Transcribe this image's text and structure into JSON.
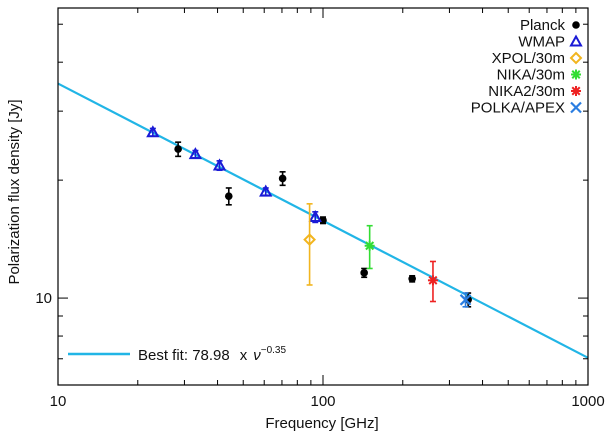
{
  "chart_data": {
    "type": "scatter",
    "xlabel": "Frequency [GHz]",
    "ylabel": "Polarization flux density [Jy]",
    "x_scale": "log",
    "y_scale": "log",
    "xlim": [
      10,
      1000
    ],
    "ylim": [
      6,
      55
    ],
    "x_ticks": [
      10,
      100,
      1000
    ],
    "x_tick_labels": [
      "10",
      "100",
      "1000"
    ],
    "y_ticks": [
      10
    ],
    "y_tick_labels": [
      "10"
    ],
    "legend_position": "top-right",
    "series": [
      {
        "name": "Planck",
        "color": "#000000",
        "marker": "filled-circle",
        "points": [
          {
            "x": 28.4,
            "y": 24.0,
            "err": 1.0
          },
          {
            "x": 44.1,
            "y": 18.2,
            "err": 0.9
          },
          {
            "x": 70.4,
            "y": 20.2,
            "err": 0.8
          },
          {
            "x": 100,
            "y": 15.8,
            "err": 0.3
          },
          {
            "x": 143,
            "y": 11.6,
            "err": 0.3
          },
          {
            "x": 217,
            "y": 11.2,
            "err": 0.2
          },
          {
            "x": 353,
            "y": 9.9,
            "err": 0.4
          }
        ]
      },
      {
        "name": "WMAP",
        "color": "#1a1ad6",
        "marker": "triangle",
        "points": [
          {
            "x": 22.8,
            "y": 26.5,
            "err": 0.6
          },
          {
            "x": 33.0,
            "y": 23.3,
            "err": 0.5
          },
          {
            "x": 40.7,
            "y": 21.8,
            "err": 0.6
          },
          {
            "x": 60.8,
            "y": 18.7,
            "err": 0.4
          },
          {
            "x": 93.5,
            "y": 16.1,
            "err": 0.5
          }
        ]
      },
      {
        "name": "XPOL/30m",
        "color": "#f2b51f",
        "marker": "open-diamond",
        "points": [
          {
            "x": 89,
            "y": 14.1,
            "err": 3.3
          }
        ]
      },
      {
        "name": "NIKA/30m",
        "color": "#33dd33",
        "marker": "cross",
        "points": [
          {
            "x": 150,
            "y": 13.6,
            "err": 1.7
          }
        ]
      },
      {
        "name": "NIKA2/30m",
        "color": "#ee2222",
        "marker": "cross",
        "points": [
          {
            "x": 260,
            "y": 11.1,
            "err": 1.3
          }
        ]
      },
      {
        "name": "POLKA/APEX",
        "color": "#2a7de1",
        "marker": "x",
        "points": [
          {
            "x": 345,
            "y": 9.9,
            "err": 0.4
          }
        ]
      }
    ],
    "fit": {
      "color": "#21b5e6",
      "coefficient": 78.98,
      "exponent": -0.35,
      "label_prefix": "Best fit: ",
      "label_value": "78.98",
      "label_times": "x",
      "label_nu": "ν",
      "label_exponent": "−0.35"
    }
  }
}
